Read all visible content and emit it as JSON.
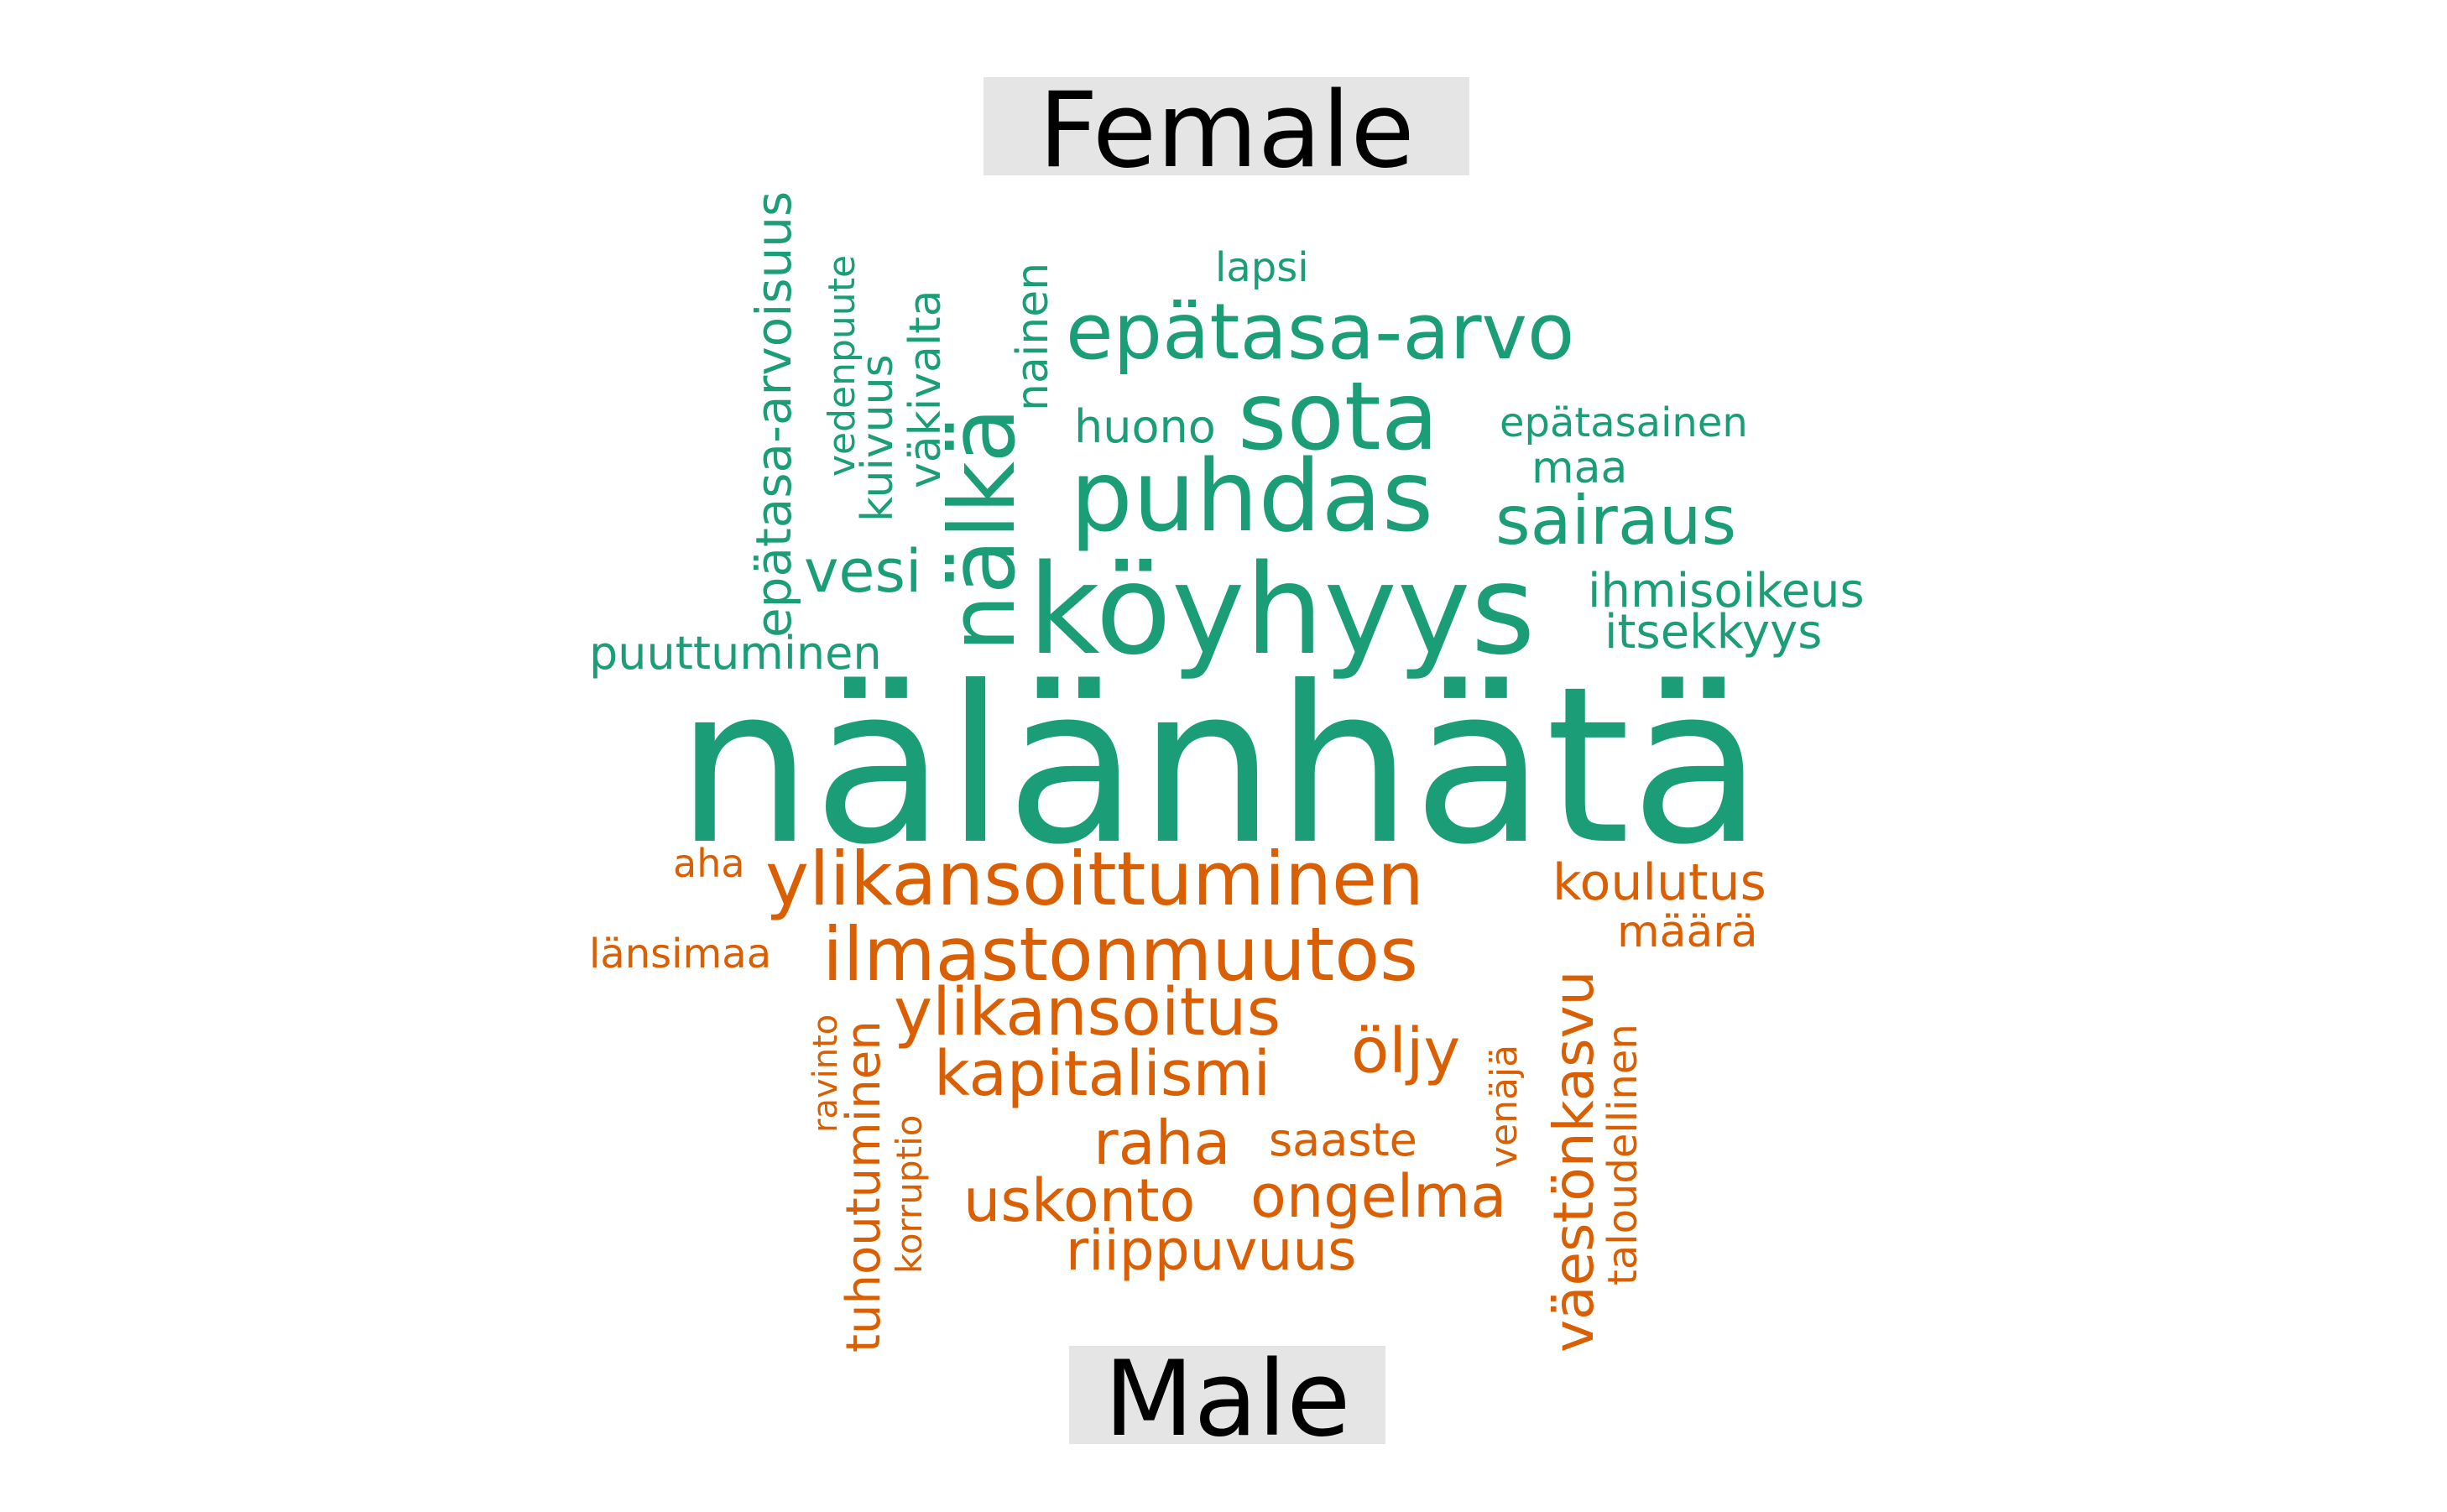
{
  "chart_data": {
    "type": "wordcloud",
    "colors": {
      "female": "#1b9e77",
      "male": "#d95f02"
    },
    "groups": [
      {
        "name": "Female",
        "words": [
          "nälänhätä",
          "köyhyys",
          "puhdas",
          "sota",
          "epätasa-arvo",
          "nälkä",
          "sairaus",
          "epätasa-arvoisuus",
          "vesi",
          "väkivalta",
          "nainen",
          "kuivuus",
          "vedenpuute",
          "huono",
          "lapsi",
          "epätasainen",
          "maa",
          "ihmisoikeus",
          "itsekkyys",
          "puuttuminen"
        ]
      },
      {
        "name": "Male",
        "words": [
          "ylikansoittuminen",
          "ilmastonmuutos",
          "ylikansoitus",
          "kapitalismi",
          "öljy",
          "väestönkasvu",
          "raha",
          "uskonto",
          "ongelma",
          "riippuvuus",
          "koulutus",
          "tuhoutuminen",
          "saaste",
          "määrä",
          "aha",
          "länsimaa",
          "taloudellinen",
          "ravinto",
          "korruptio",
          "venäjä"
        ]
      }
    ]
  }
}
